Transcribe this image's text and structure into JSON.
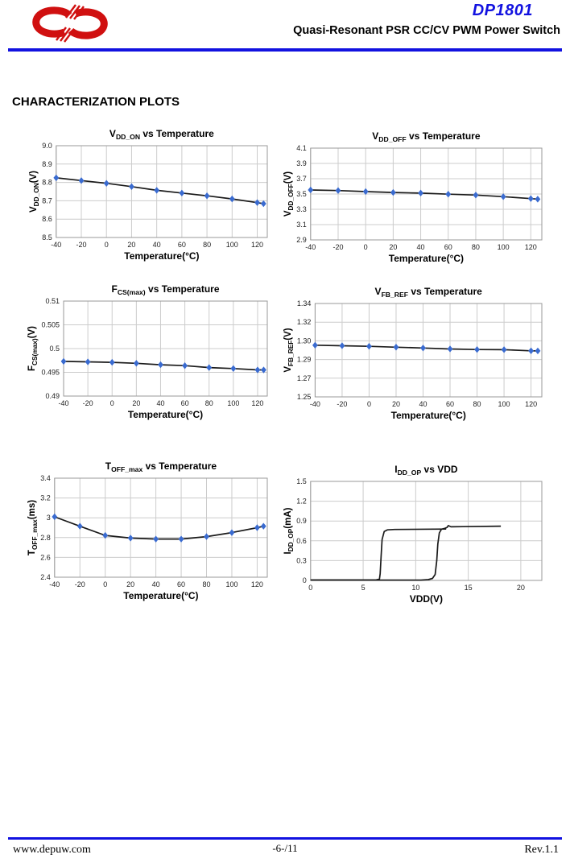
{
  "colors": {
    "accent_blue": "#1212e0",
    "logo_red": "#d01010",
    "marker_blue": "#3a6bd0",
    "line_black": "#1a1a1a",
    "grid": "#cccccc",
    "axis": "#9a9a9a"
  },
  "header": {
    "product": "DP1801",
    "subtitle": "Quasi-Resonant PSR CC/CV PWM Power Switch"
  },
  "section_title": "CHARACTERIZATION PLOTS",
  "footer": {
    "website": "www.depuw.com",
    "page": "-6-/11",
    "revision": "Rev.1.1"
  },
  "chart_data": [
    {
      "type": "line",
      "title": "VDD_ON vs Temperature",
      "title_parts": [
        {
          "t": "V"
        },
        {
          "t": "DD_ON",
          "sub": true
        },
        {
          "t": " vs Temperature"
        }
      ],
      "ylabel": "VDD_ON(V)",
      "ylabel_parts": [
        {
          "t": "V"
        },
        {
          "t": "DD_ON",
          "sub": true
        },
        {
          "t": "(V)"
        }
      ],
      "xlabel": "Temperature(°C)",
      "xlim": [
        -40,
        128
      ],
      "ylim": [
        8.5,
        9.0
      ],
      "grid": true,
      "legend": "none",
      "xticks": [
        {
          "v": -40,
          "l": "-40"
        },
        {
          "v": -20,
          "l": "-20"
        },
        {
          "v": 0,
          "l": "0"
        },
        {
          "v": 20,
          "l": "20"
        },
        {
          "v": 40,
          "l": "40"
        },
        {
          "v": 60,
          "l": "60"
        },
        {
          "v": 80,
          "l": "80"
        },
        {
          "v": 100,
          "l": "100"
        },
        {
          "v": 120,
          "l": "120"
        }
      ],
      "yticks": [
        {
          "v": 8.5,
          "l": "8.5"
        },
        {
          "v": 8.6,
          "l": "8.6"
        },
        {
          "v": 8.7,
          "l": "8.7"
        },
        {
          "v": 8.8,
          "l": "8.8"
        },
        {
          "v": 8.9,
          "l": "8.9"
        },
        {
          "v": 9.0,
          "l": "9.0"
        }
      ],
      "series": [
        {
          "name": "VDD_ON",
          "marker": "diamond",
          "points": [
            [
              -40,
              8.825
            ],
            [
              -20,
              8.81
            ],
            [
              0,
              8.795
            ],
            [
              20,
              8.777
            ],
            [
              40,
              8.757
            ],
            [
              60,
              8.742
            ],
            [
              80,
              8.727
            ],
            [
              100,
              8.71
            ],
            [
              120,
              8.69
            ],
            [
              125,
              8.684
            ]
          ]
        }
      ]
    },
    {
      "type": "line",
      "title": "VDD_OFF vs Temperature",
      "title_parts": [
        {
          "t": "V"
        },
        {
          "t": "DD_OFF",
          "sub": true
        },
        {
          "t": " vs Temperature"
        }
      ],
      "ylabel": "VDD_OFF(V)",
      "ylabel_parts": [
        {
          "t": "V"
        },
        {
          "t": "DD_OFF",
          "sub": true
        },
        {
          "t": "(V)"
        }
      ],
      "xlabel": "Temperature(°C)",
      "xlim": [
        -40,
        128
      ],
      "ylim": [
        2.9,
        4.1
      ],
      "grid": true,
      "legend": "none",
      "xticks": [
        {
          "v": -40,
          "l": "-40"
        },
        {
          "v": -20,
          "l": "-20"
        },
        {
          "v": 0,
          "l": "0"
        },
        {
          "v": 20,
          "l": "20"
        },
        {
          "v": 40,
          "l": "40"
        },
        {
          "v": 60,
          "l": "60"
        },
        {
          "v": 80,
          "l": "80"
        },
        {
          "v": 100,
          "l": "100"
        },
        {
          "v": 120,
          "l": "120"
        }
      ],
      "yticks": [
        {
          "v": 2.9,
          "l": "2.9"
        },
        {
          "v": 3.1,
          "l": "3.1"
        },
        {
          "v": 3.3,
          "l": "3.3"
        },
        {
          "v": 3.5,
          "l": "3.5"
        },
        {
          "v": 3.7,
          "l": "3.7"
        },
        {
          "v": 3.9,
          "l": "3.9"
        },
        {
          "v": 4.1,
          "l": "4.1"
        }
      ],
      "series": [
        {
          "name": "VDD_OFF",
          "marker": "diamond",
          "points": [
            [
              -40,
              3.553
            ],
            [
              -20,
              3.545
            ],
            [
              0,
              3.532
            ],
            [
              20,
              3.52
            ],
            [
              40,
              3.512
            ],
            [
              60,
              3.498
            ],
            [
              80,
              3.486
            ],
            [
              100,
              3.465
            ],
            [
              120,
              3.44
            ],
            [
              125,
              3.433
            ]
          ]
        }
      ]
    },
    {
      "type": "line",
      "title": "FCS(max) vs Temperature",
      "title_parts": [
        {
          "t": "F"
        },
        {
          "t": "CS(max)",
          "sub": true
        },
        {
          "t": " vs Temperature"
        }
      ],
      "ylabel": "FCS(max)(V)",
      "ylabel_parts": [
        {
          "t": "F"
        },
        {
          "t": "CS(max)",
          "sub": true
        },
        {
          "t": "(V)"
        }
      ],
      "xlabel": "Temperature(°C)",
      "xlim": [
        -40,
        128
      ],
      "ylim": [
        0.49,
        0.51
      ],
      "grid": true,
      "legend": "none",
      "xticks": [
        {
          "v": -40,
          "l": "-40"
        },
        {
          "v": -20,
          "l": "-20"
        },
        {
          "v": 0,
          "l": "0"
        },
        {
          "v": 20,
          "l": "20"
        },
        {
          "v": 40,
          "l": "40"
        },
        {
          "v": 60,
          "l": "60"
        },
        {
          "v": 80,
          "l": "80"
        },
        {
          "v": 100,
          "l": "100"
        },
        {
          "v": 120,
          "l": "120"
        }
      ],
      "yticks": [
        {
          "v": 0.49,
          "l": "0.49"
        },
        {
          "v": 0.495,
          "l": "0.495"
        },
        {
          "v": 0.5,
          "l": "0.5"
        },
        {
          "v": 0.505,
          "l": "0.505"
        },
        {
          "v": 0.51,
          "l": "0.51"
        }
      ],
      "series": [
        {
          "name": "FCS_max",
          "marker": "diamond",
          "points": [
            [
              -40,
              0.4973
            ],
            [
              -20,
              0.4972
            ],
            [
              0,
              0.4971
            ],
            [
              20,
              0.4969
            ],
            [
              40,
              0.4966
            ],
            [
              60,
              0.4964
            ],
            [
              80,
              0.496
            ],
            [
              100,
              0.4958
            ],
            [
              120,
              0.4955
            ],
            [
              125,
              0.4955
            ]
          ]
        }
      ]
    },
    {
      "type": "line",
      "title": "VFB_REF vs Temperature",
      "title_parts": [
        {
          "t": "V"
        },
        {
          "t": "FB_REF",
          "sub": true
        },
        {
          "t": " vs Temperature"
        }
      ],
      "ylabel": "VFB_REF(V)",
      "ylabel_parts": [
        {
          "t": "V"
        },
        {
          "t": "FB_REF",
          "sub": true
        },
        {
          "t": "(V)"
        }
      ],
      "xlabel": "Temperature(°C)",
      "xlim": [
        -40,
        128
      ],
      "ylim": [
        1.25,
        1.34
      ],
      "grid": true,
      "legend": "none",
      "xticks": [
        {
          "v": -40,
          "l": "-40"
        },
        {
          "v": -20,
          "l": "-20"
        },
        {
          "v": 0,
          "l": "0"
        },
        {
          "v": 20,
          "l": "20"
        },
        {
          "v": 40,
          "l": "40"
        },
        {
          "v": 60,
          "l": "60"
        },
        {
          "v": 80,
          "l": "80"
        },
        {
          "v": 100,
          "l": "100"
        },
        {
          "v": 120,
          "l": "120"
        }
      ],
      "yticks": [
        {
          "v": 1.25,
          "l": "1.25"
        },
        {
          "v": 1.268,
          "l": "1.27"
        },
        {
          "v": 1.286,
          "l": "1.29"
        },
        {
          "v": 1.304,
          "l": "1.30"
        },
        {
          "v": 1.322,
          "l": "1.32"
        },
        {
          "v": 1.34,
          "l": "1.34"
        }
      ],
      "series": [
        {
          "name": "VFB_REF",
          "marker": "diamond",
          "points": [
            [
              -40,
              1.2998
            ],
            [
              -20,
              1.2993
            ],
            [
              0,
              1.2987
            ],
            [
              20,
              1.2979
            ],
            [
              40,
              1.2971
            ],
            [
              60,
              1.2962
            ],
            [
              80,
              1.2956
            ],
            [
              100,
              1.2955
            ],
            [
              120,
              1.2944
            ],
            [
              125,
              1.2943
            ]
          ]
        }
      ]
    },
    {
      "type": "line",
      "title": "TOFF_max vs Temperature",
      "title_parts": [
        {
          "t": "T"
        },
        {
          "t": "OFF_max",
          "sub": true
        },
        {
          "t": " vs Temperature"
        }
      ],
      "ylabel": "TOFF_max(ms)",
      "ylabel_parts": [
        {
          "t": "T"
        },
        {
          "t": "OFF_max",
          "sub": true
        },
        {
          "t": "(ms)"
        }
      ],
      "xlabel": "Temperature(°C)",
      "xlim": [
        -40,
        128
      ],
      "ylim": [
        2.4,
        3.4
      ],
      "grid": true,
      "legend": "none",
      "xticks": [
        {
          "v": -40,
          "l": "-40"
        },
        {
          "v": -20,
          "l": "-20"
        },
        {
          "v": 0,
          "l": "0"
        },
        {
          "v": 20,
          "l": "20"
        },
        {
          "v": 40,
          "l": "40"
        },
        {
          "v": 60,
          "l": "60"
        },
        {
          "v": 80,
          "l": "80"
        },
        {
          "v": 100,
          "l": "100"
        },
        {
          "v": 120,
          "l": "120"
        }
      ],
      "yticks": [
        {
          "v": 2.4,
          "l": "2.4"
        },
        {
          "v": 2.6,
          "l": "2.6"
        },
        {
          "v": 2.8,
          "l": "2.8"
        },
        {
          "v": 3,
          "l": "3"
        },
        {
          "v": 3.2,
          "l": "3.2"
        },
        {
          "v": 3.4,
          "l": "3.4"
        }
      ],
      "series": [
        {
          "name": "TOFF_max",
          "marker": "diamond",
          "points": [
            [
              -40,
              3.01
            ],
            [
              -20,
              2.915
            ],
            [
              0,
              2.822
            ],
            [
              20,
              2.795
            ],
            [
              40,
              2.785
            ],
            [
              60,
              2.785
            ],
            [
              80,
              2.81
            ],
            [
              100,
              2.85
            ],
            [
              120,
              2.9
            ],
            [
              125,
              2.915
            ]
          ]
        }
      ]
    },
    {
      "type": "line",
      "title": "IDD_OP vs VDD",
      "title_parts": [
        {
          "t": "I"
        },
        {
          "t": "DD_OP",
          "sub": true
        },
        {
          "t": " vs VDD"
        }
      ],
      "ylabel": "IDD_OP(mA)",
      "ylabel_parts": [
        {
          "t": "I"
        },
        {
          "t": "DD_OP",
          "sub": true
        },
        {
          "t": "(mA)"
        }
      ],
      "xlabel": "VDD(V)",
      "xlim": [
        0,
        22
      ],
      "ylim": [
        0,
        1.5
      ],
      "grid": true,
      "legend": "none",
      "xticks": [
        {
          "v": 0,
          "l": "0"
        },
        {
          "v": 5,
          "l": "5"
        },
        {
          "v": 10,
          "l": "10"
        },
        {
          "v": 15,
          "l": "15"
        },
        {
          "v": 20,
          "l": "20"
        }
      ],
      "yticks": [
        {
          "v": 0,
          "l": "0"
        },
        {
          "v": 0.3,
          "l": "0.3"
        },
        {
          "v": 0.6,
          "l": "0.6"
        },
        {
          "v": 0.9,
          "l": "0.9"
        },
        {
          "v": 1.2,
          "l": "1.2"
        },
        {
          "v": 1.5,
          "l": "1.5"
        }
      ],
      "series": [
        {
          "name": "sweep_up",
          "marker": "none",
          "points": [
            [
              0,
              0.005
            ],
            [
              10.5,
              0.005
            ],
            [
              11.2,
              0.012
            ],
            [
              11.6,
              0.03
            ],
            [
              11.85,
              0.09
            ],
            [
              12.0,
              0.3
            ],
            [
              12.1,
              0.55
            ],
            [
              12.25,
              0.72
            ],
            [
              12.45,
              0.775
            ],
            [
              12.8,
              0.79
            ],
            [
              13.0,
              0.805
            ],
            [
              13.1,
              0.83
            ],
            [
              13.35,
              0.812
            ],
            [
              14.5,
              0.815
            ],
            [
              18.1,
              0.822
            ]
          ]
        },
        {
          "name": "sweep_down",
          "marker": "none",
          "points": [
            [
              12.9,
              0.778
            ],
            [
              8.0,
              0.772
            ],
            [
              7.3,
              0.766
            ],
            [
              7.0,
              0.74
            ],
            [
              6.8,
              0.62
            ],
            [
              6.7,
              0.35
            ],
            [
              6.62,
              0.1
            ],
            [
              6.55,
              0.02
            ],
            [
              6.2,
              0.006
            ],
            [
              0,
              0.006
            ]
          ]
        }
      ]
    }
  ]
}
